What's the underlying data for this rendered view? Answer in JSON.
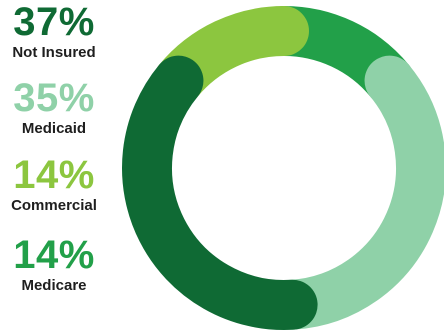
{
  "chart_data": {
    "type": "pie",
    "variant": "donut",
    "title": "",
    "segments": [
      {
        "label": "Not Insured",
        "value": 37,
        "display": "37%",
        "color": "#0f6a34"
      },
      {
        "label": "Medicaid",
        "value": 35,
        "display": "35%",
        "color": "#8fd1a8"
      },
      {
        "label": "Commercial",
        "value": 14,
        "display": "14%",
        "color": "#8cc63f"
      },
      {
        "label": "Medicare",
        "value": 14,
        "display": "14%",
        "color": "#22a049"
      }
    ],
    "legend_position": "left"
  }
}
